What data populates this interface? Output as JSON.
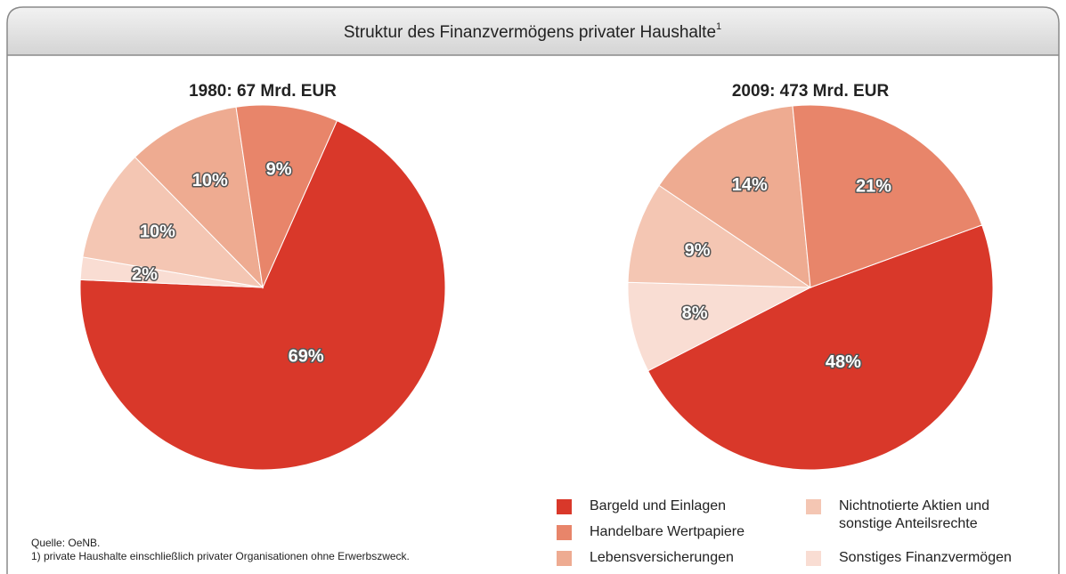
{
  "title": "Struktur des Finanzvermögens privater Haushalte",
  "title_note": "1",
  "source": "Quelle: OeNB.",
  "footnote": "1) private Haushalte einschließlich privater Organisationen ohne Erwerbszweck.",
  "chart_data": [
    {
      "type": "pie",
      "title": "1980: 67 Mrd. EUR",
      "categories": [
        "Bargeld und Einlagen",
        "Handelbare Wertpapiere",
        "Lebensversicherungen",
        "Nichtnotierte Aktien und sonstige Anteilsrechte",
        "Sonstiges Finanzvermögen"
      ],
      "colors": [
        "#d9382a",
        "#e8856a",
        "#eeab91",
        "#f4c6b3",
        "#f9ddd3"
      ],
      "values": [
        69,
        9,
        10,
        10,
        2
      ],
      "value_labels": [
        "69%",
        "9%",
        "10%",
        "10%",
        "2%"
      ]
    },
    {
      "type": "pie",
      "title": "2009: 473 Mrd. EUR",
      "categories": [
        "Bargeld und Einlagen",
        "Handelbare Wertpapiere",
        "Lebensversicherungen",
        "Nichtnotierte Aktien und sonstige Anteilsrechte",
        "Sonstiges Finanzvermögen"
      ],
      "colors": [
        "#d9382a",
        "#e8856a",
        "#eeab91",
        "#f4c6b3",
        "#f9ddd3"
      ],
      "values": [
        48,
        21,
        14,
        9,
        8
      ],
      "value_labels": [
        "48%",
        "21%",
        "14%",
        "9%",
        "8%"
      ]
    }
  ]
}
